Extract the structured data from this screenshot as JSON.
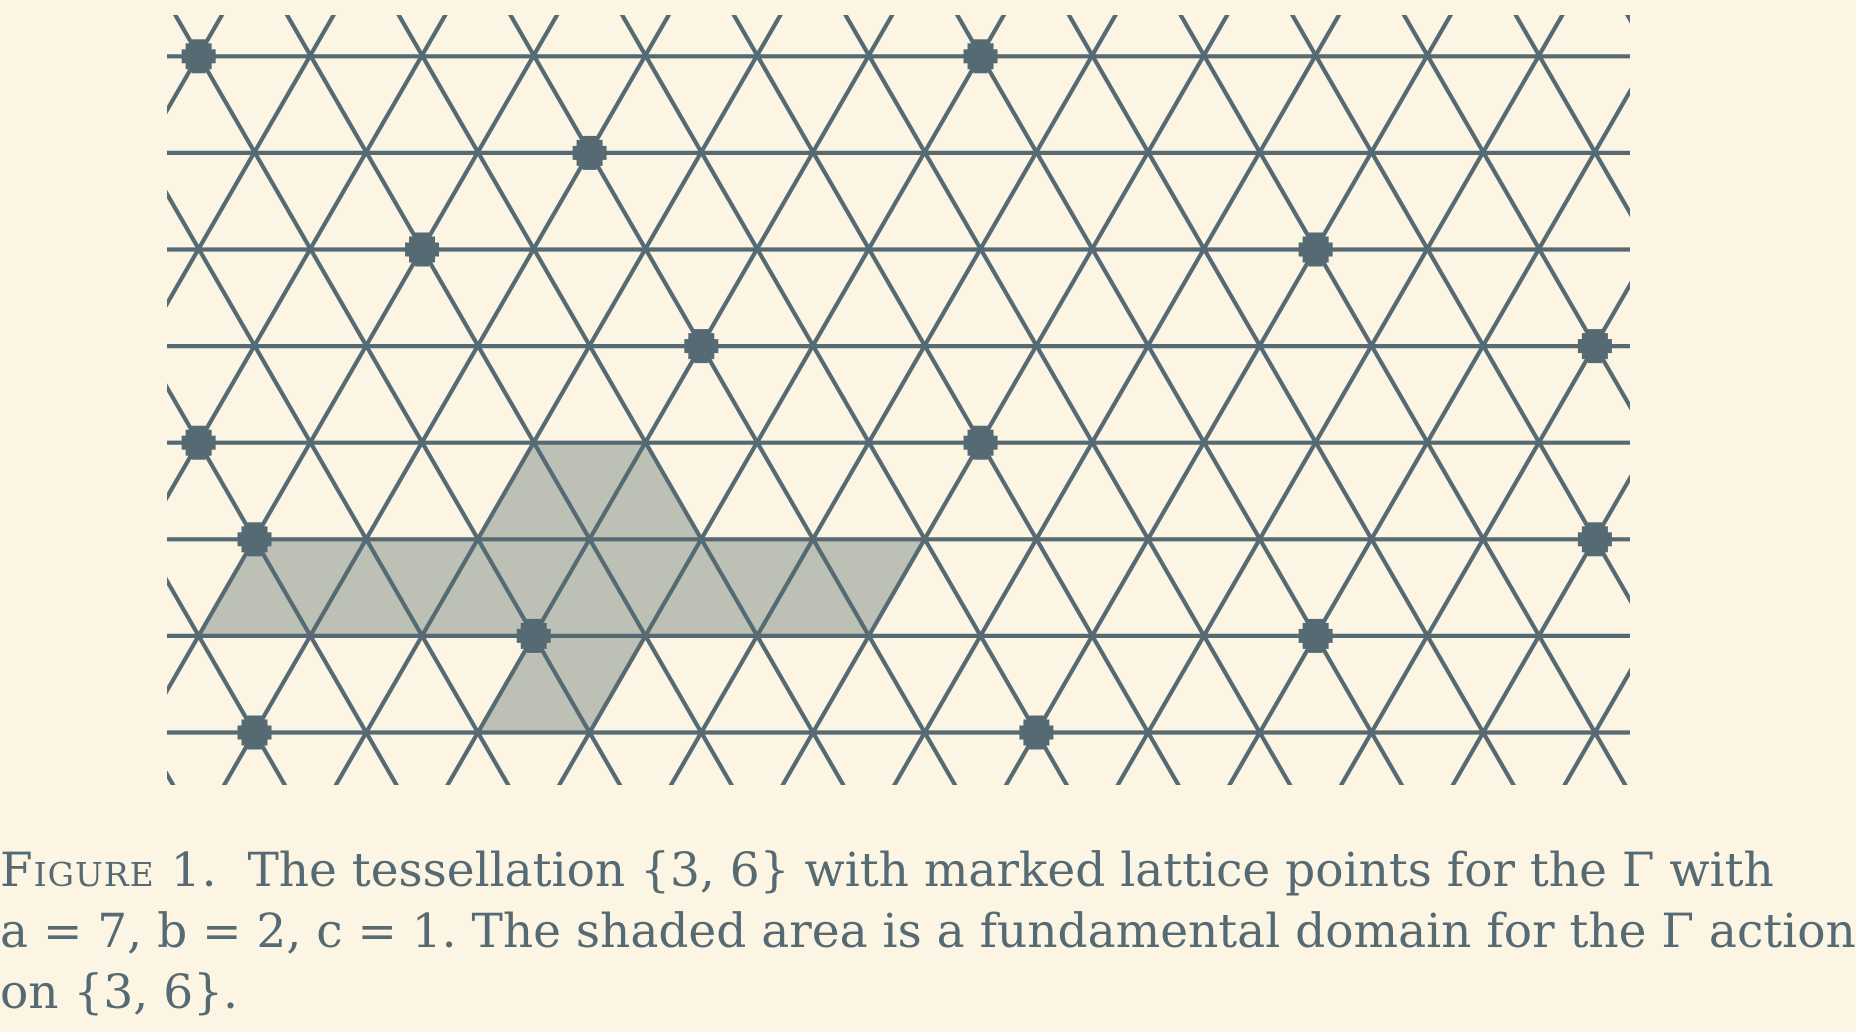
{
  "figure": {
    "label": "Figure 1.",
    "colors": {
      "background": "#fcf5e3",
      "edge": "#556a73",
      "shade": "#bcc0b5",
      "marker": "#556a73"
    }
  },
  "caption": {
    "line1_text": "The tessellation {3, 6} with marked lattice points for the Γ with",
    "line2_text": "a = 7, b = 2, c = 1. The shaded area is a fundamental domain for the Γ action",
    "line3_text": "on {3, 6}."
  }
}
